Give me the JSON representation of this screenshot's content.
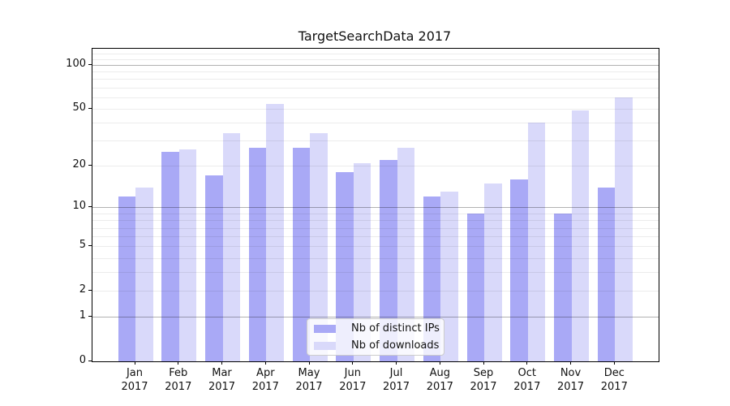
{
  "chart_data": {
    "type": "bar",
    "title": "TargetSearchData 2017",
    "months": [
      "Jan",
      "Feb",
      "Mar",
      "Apr",
      "May",
      "Jun",
      "Jul",
      "Aug",
      "Sep",
      "Oct",
      "Nov",
      "Dec"
    ],
    "year_label": "2017",
    "series": [
      {
        "key": "distinct-ips",
        "name": "Nb of distinct IPs",
        "color": "#a9a9f6",
        "values": [
          12,
          25,
          17,
          27,
          27,
          18,
          22,
          12,
          9,
          16,
          9,
          14
        ]
      },
      {
        "key": "downloads",
        "name": "Nb of downloads",
        "color": "#d9d9fa",
        "values": [
          14,
          26,
          34,
          54,
          34,
          21,
          27,
          13,
          15,
          40,
          49,
          60
        ]
      }
    ],
    "xlabel": "",
    "ylabel": "",
    "y_axis": {
      "scale": "symlog ln(1+v)",
      "ylim": [
        0,
        130
      ],
      "tick_values": [
        0,
        1,
        2,
        5,
        10,
        20,
        50,
        100
      ],
      "tick_labels": [
        "0",
        "1",
        "2",
        "5",
        "10",
        "20",
        "50",
        "100"
      ],
      "major_gridlines": [
        1,
        10,
        100
      ],
      "minor_gridlines": [
        2,
        3,
        4,
        5,
        6,
        7,
        8,
        9,
        20,
        30,
        40,
        50,
        60,
        70,
        80,
        90,
        110,
        120
      ]
    },
    "grid": "on, drawn above bars",
    "legend_position": "lower center"
  }
}
